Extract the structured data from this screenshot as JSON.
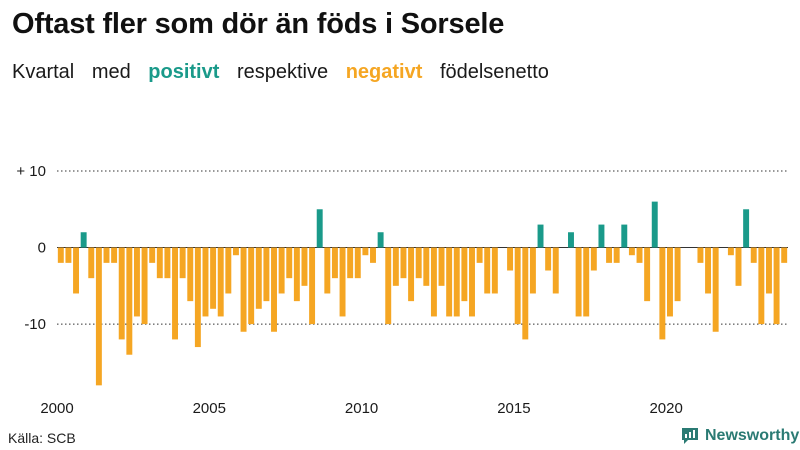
{
  "title": "Oftast fler som dör än föds i Sorsele",
  "subtitle": {
    "w1": "Kvartal",
    "w2": "med",
    "positive": "positivt",
    "w3": "respektive",
    "negative": "negativt",
    "w4": "födelsenetto"
  },
  "source": "Källa: SCB",
  "brand": "Newsworthy",
  "colors": {
    "positive": "#1a9a8a",
    "negative": "#f5a623",
    "text": "#1a1a1a",
    "grid": "#333333"
  },
  "chart_data": {
    "type": "bar",
    "title": "Oftast fler som dör än föds i Sorsele",
    "xlabel": "",
    "ylabel": "",
    "ylim": [
      -19,
      10
    ],
    "yticks": [
      10,
      0,
      -10
    ],
    "ytick_labels": [
      "+ 10",
      "0",
      "-10"
    ],
    "xticks": [
      2000,
      2005,
      2010,
      2015,
      2020
    ],
    "x_start": 2000,
    "periods_per_year": 4,
    "categories": [
      "2000K1",
      "2000K2",
      "2000K3",
      "2000K4",
      "2001K1",
      "2001K2",
      "2001K3",
      "2001K4",
      "2002K1",
      "2002K2",
      "2002K3",
      "2002K4",
      "2003K1",
      "2003K2",
      "2003K3",
      "2003K4",
      "2004K1",
      "2004K2",
      "2004K3",
      "2004K4",
      "2005K1",
      "2005K2",
      "2005K3",
      "2005K4",
      "2006K1",
      "2006K2",
      "2006K3",
      "2006K4",
      "2007K1",
      "2007K2",
      "2007K3",
      "2007K4",
      "2008K1",
      "2008K2",
      "2008K3",
      "2008K4",
      "2009K1",
      "2009K2",
      "2009K3",
      "2009K4",
      "2010K1",
      "2010K2",
      "2010K3",
      "2010K4",
      "2011K1",
      "2011K2",
      "2011K3",
      "2011K4",
      "2012K1",
      "2012K2",
      "2012K3",
      "2012K4",
      "2013K1",
      "2013K2",
      "2013K3",
      "2013K4",
      "2014K1",
      "2014K2",
      "2014K3",
      "2014K4",
      "2015K1",
      "2015K2",
      "2015K3",
      "2015K4",
      "2016K1",
      "2016K2",
      "2016K3",
      "2016K4",
      "2017K1",
      "2017K2",
      "2017K3",
      "2017K4",
      "2018K1",
      "2018K2",
      "2018K3",
      "2018K4",
      "2019K1",
      "2019K2",
      "2019K3",
      "2019K4",
      "2020K1",
      "2020K2",
      "2020K3",
      "2020K4",
      "2021K1",
      "2021K2",
      "2021K3",
      "2021K4",
      "2022K1",
      "2022K2",
      "2022K3",
      "2022K4",
      "2023K1",
      "2023K2",
      "2023K3",
      "2023K4"
    ],
    "values": [
      -2,
      -2,
      -6,
      2,
      -4,
      -18,
      -2,
      -2,
      -12,
      -14,
      -9,
      -10,
      -2,
      -4,
      -4,
      -12,
      -4,
      -7,
      -13,
      -9,
      -8,
      -9,
      -6,
      -1,
      -11,
      -10,
      -8,
      -7,
      -11,
      -6,
      -4,
      -7,
      -5,
      -10,
      5,
      -6,
      -4,
      -9,
      -4,
      -4,
      -1,
      -2,
      2,
      -10,
      -5,
      -4,
      -7,
      -4,
      -5,
      -9,
      -5,
      -9,
      -9,
      -7,
      -9,
      -2,
      -6,
      -6,
      0,
      -3,
      -10,
      -12,
      -6,
      3,
      -3,
      -6,
      0,
      2,
      -9,
      -9,
      -3,
      3,
      -2,
      -2,
      3,
      -1,
      -2,
      -7,
      6,
      -12,
      -9,
      -7,
      0,
      0,
      -2,
      -6,
      -11,
      0,
      -1,
      -5,
      5,
      -2,
      -10,
      -6,
      -10,
      -2
    ]
  }
}
